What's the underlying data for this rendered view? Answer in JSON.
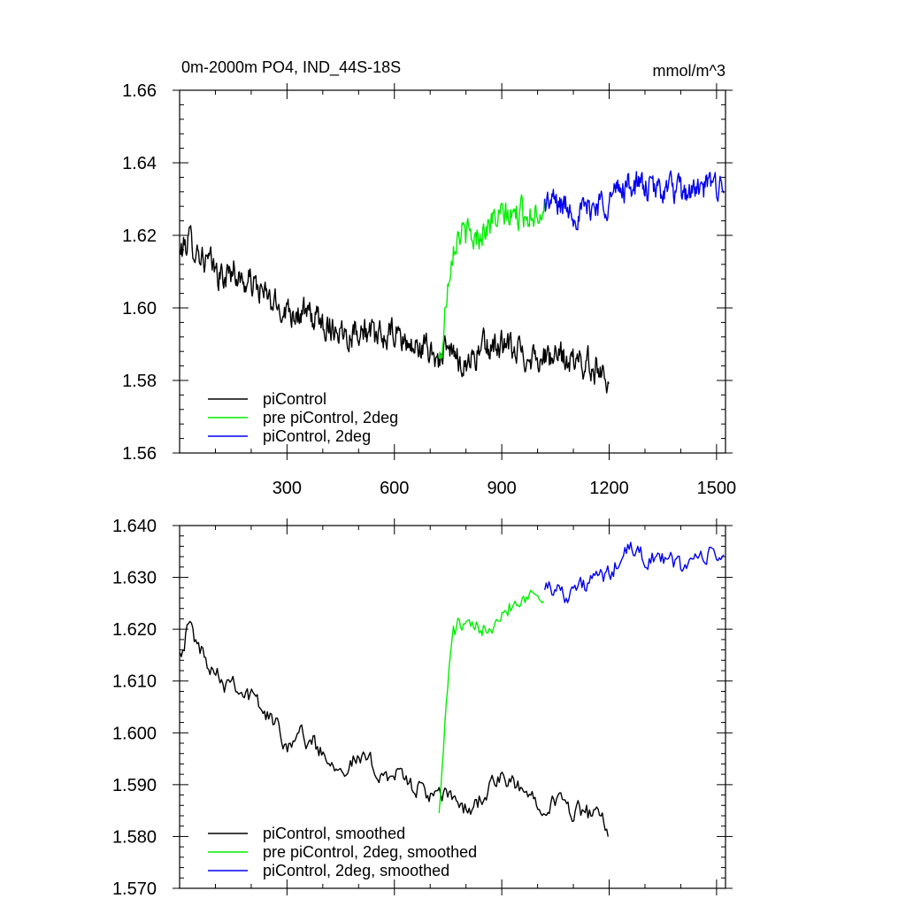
{
  "chart_data": [
    {
      "type": "line",
      "title": "0m-2000m PO4, IND_44S-18S",
      "units": "mmol/m^3",
      "xlabel": "",
      "ylabel": "",
      "xlim": [
        0,
        1525
      ],
      "ylim": [
        1.56,
        1.66
      ],
      "xtick_values": [
        300,
        600,
        900,
        1200,
        1500
      ],
      "xtick_labels": [
        "300",
        "600",
        "900",
        "1200",
        "1500"
      ],
      "ytick_values": [
        1.56,
        1.58,
        1.6,
        1.62,
        1.64,
        1.66
      ],
      "ytick_labels": [
        "1.56",
        "1.58",
        "1.60",
        "1.62",
        "1.64",
        "1.66"
      ],
      "legend_position": "bottom-left",
      "series": [
        {
          "name": "piControl",
          "color": "#000000",
          "x": [
            1,
            25,
            50,
            75,
            100,
            125,
            150,
            175,
            200,
            225,
            250,
            275,
            300,
            325,
            350,
            375,
            400,
            425,
            450,
            475,
            500,
            525,
            550,
            575,
            600,
            625,
            650,
            675,
            700,
            725,
            750,
            775,
            800,
            825,
            850,
            875,
            900,
            925,
            950,
            975,
            1000,
            1025,
            1050,
            1075,
            1100,
            1125,
            1150,
            1175,
            1200
          ],
          "values": [
            1.615,
            1.619,
            1.616,
            1.613,
            1.61,
            1.608,
            1.611,
            1.607,
            1.607,
            1.605,
            1.602,
            1.6,
            1.6,
            1.599,
            1.598,
            1.597,
            1.596,
            1.595,
            1.594,
            1.593,
            1.595,
            1.593,
            1.591,
            1.592,
            1.593,
            1.591,
            1.589,
            1.589,
            1.588,
            1.586,
            1.588,
            1.586,
            1.585,
            1.587,
            1.589,
            1.589,
            1.59,
            1.588,
            1.588,
            1.587,
            1.587,
            1.586,
            1.586,
            1.586,
            1.585,
            1.585,
            1.584,
            1.583,
            1.581
          ]
        },
        {
          "name": "pre piControl, 2deg",
          "color": "#00ee00",
          "x": [
            725,
            735,
            745,
            755,
            765,
            780,
            800,
            825,
            850,
            875,
            900,
            925,
            950,
            975,
            1000,
            1020
          ],
          "values": [
            1.585,
            1.59,
            1.603,
            1.612,
            1.618,
            1.621,
            1.62,
            1.619,
            1.622,
            1.624,
            1.625,
            1.625,
            1.626,
            1.626,
            1.627,
            1.628
          ]
        },
        {
          "name": "piControl, 2deg",
          "color": "#0000ee",
          "x": [
            1020,
            1050,
            1075,
            1100,
            1125,
            1150,
            1175,
            1200,
            1225,
            1250,
            1275,
            1300,
            1325,
            1350,
            1375,
            1400,
            1425,
            1450,
            1475,
            1500,
            1520
          ],
          "values": [
            1.629,
            1.629,
            1.628,
            1.627,
            1.626,
            1.628,
            1.629,
            1.63,
            1.632,
            1.634,
            1.634,
            1.633,
            1.632,
            1.633,
            1.633,
            1.631,
            1.632,
            1.632,
            1.633,
            1.634,
            1.635
          ]
        }
      ],
      "legend": [
        "piControl",
        "pre piControl, 2deg",
        "piControl, 2deg"
      ]
    },
    {
      "type": "line",
      "title": "",
      "xlabel": "",
      "ylabel": "",
      "xlim": [
        0,
        1525
      ],
      "ylim": [
        1.57,
        1.64
      ],
      "xtick_values": [
        300,
        600,
        900,
        1200,
        1500
      ],
      "ytick_values": [
        1.57,
        1.58,
        1.59,
        1.6,
        1.61,
        1.62,
        1.63,
        1.64
      ],
      "ytick_labels": [
        "1.570",
        "1.580",
        "1.590",
        "1.600",
        "1.610",
        "1.620",
        "1.630",
        "1.640"
      ],
      "legend_position": "bottom-left",
      "series": [
        {
          "name": "piControl, smoothed",
          "color": "#000000",
          "x": [
            1,
            10,
            25,
            50,
            75,
            100,
            125,
            150,
            175,
            200,
            225,
            250,
            275,
            300,
            325,
            350,
            375,
            400,
            425,
            450,
            475,
            500,
            525,
            550,
            575,
            600,
            625,
            650,
            675,
            700,
            725,
            750,
            775,
            800,
            825,
            850,
            875,
            900,
            925,
            950,
            975,
            1000,
            1025,
            1050,
            1075,
            1100,
            1125,
            1150,
            1175,
            1200
          ],
          "values": [
            1.617,
            1.617,
            1.621,
            1.617,
            1.614,
            1.613,
            1.61,
            1.611,
            1.608,
            1.607,
            1.605,
            1.603,
            1.601,
            1.598,
            1.6,
            1.599,
            1.598,
            1.596,
            1.595,
            1.594,
            1.594,
            1.595,
            1.594,
            1.593,
            1.592,
            1.592,
            1.591,
            1.59,
            1.589,
            1.588,
            1.587,
            1.588,
            1.587,
            1.585,
            1.586,
            1.588,
            1.59,
            1.591,
            1.59,
            1.589,
            1.588,
            1.587,
            1.587,
            1.587,
            1.586,
            1.585,
            1.585,
            1.584,
            1.583,
            1.581
          ]
        },
        {
          "name": "pre piControl, 2deg, smoothed",
          "color": "#00ee00",
          "x": [
            725,
            735,
            745,
            755,
            765,
            780,
            800,
            825,
            850,
            875,
            900,
            925,
            950,
            975,
            1000,
            1020
          ],
          "values": [
            1.586,
            1.594,
            1.606,
            1.614,
            1.619,
            1.621,
            1.62,
            1.619,
            1.621,
            1.622,
            1.624,
            1.625,
            1.626,
            1.627,
            1.627,
            1.628
          ]
        },
        {
          "name": "piControl, 2deg, smoothed",
          "color": "#0000ee",
          "x": [
            1020,
            1050,
            1075,
            1100,
            1125,
            1150,
            1175,
            1200,
            1225,
            1250,
            1275,
            1300,
            1325,
            1350,
            1375,
            1400,
            1425,
            1450,
            1475,
            1500,
            1520
          ],
          "values": [
            1.629,
            1.628,
            1.627,
            1.628,
            1.628,
            1.629,
            1.63,
            1.63,
            1.633,
            1.635,
            1.635,
            1.634,
            1.634,
            1.633,
            1.633,
            1.632,
            1.633,
            1.634,
            1.634,
            1.634,
            1.635
          ]
        }
      ],
      "legend": [
        "piControl, smoothed",
        "pre piControl, 2deg, smoothed",
        "piControl, 2deg, smoothed"
      ]
    }
  ]
}
